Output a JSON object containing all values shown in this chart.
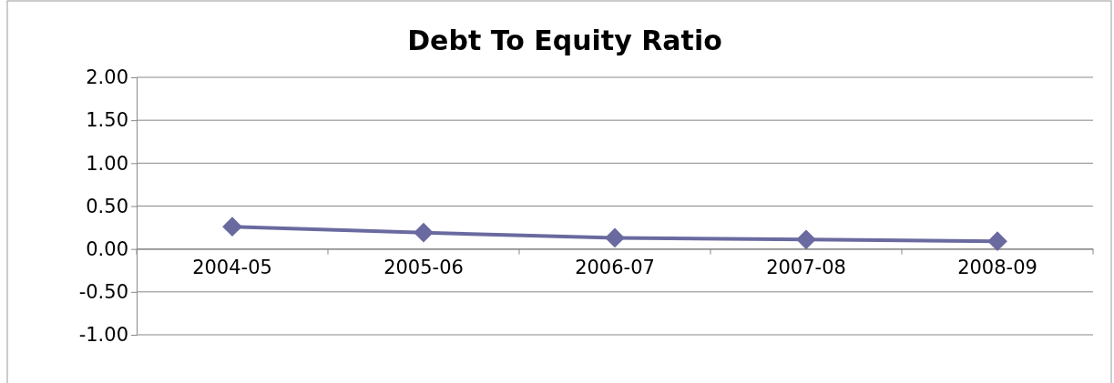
{
  "chart_data": {
    "type": "line",
    "title": "Debt To Equity Ratio",
    "categories": [
      "2004-05",
      "2005-06",
      "2006-07",
      "2007-08",
      "2008-09"
    ],
    "series": [
      {
        "color": "#6a6aa0",
        "values": [
          0.26,
          0.19,
          0.13,
          0.11,
          0.09
        ]
      }
    ],
    "ylim": [
      -1,
      2
    ],
    "yticks": [
      {
        "value": -1,
        "label": "-1.00"
      },
      {
        "value": -0.5,
        "label": "-0.50"
      },
      {
        "value": 0,
        "label": "0.00"
      },
      {
        "value": 0.5,
        "label": "0.50"
      },
      {
        "value": 1,
        "label": "1.00"
      },
      {
        "value": 1.5,
        "label": "1.50"
      },
      {
        "value": 2,
        "label": "2.00"
      }
    ],
    "grid": "y",
    "marker": "diamond",
    "line_style": "solid"
  }
}
